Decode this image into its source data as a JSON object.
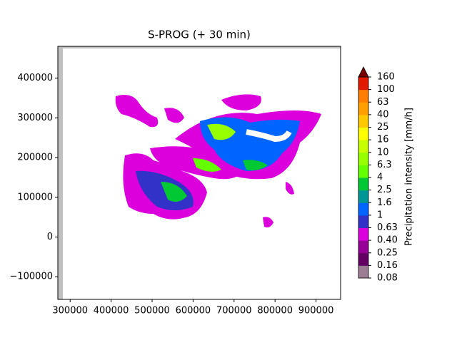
{
  "chart_data": {
    "type": "contourf",
    "title": "S-PROG (+ 30 min)",
    "xlim": [
      270000,
      960000
    ],
    "xticks": [
      300000,
      400000,
      500000,
      600000,
      700000,
      800000,
      900000
    ],
    "ylim": [
      -157000,
      480000
    ],
    "yticks": [
      {
        "value": -100000,
        "label": "−100000"
      },
      0,
      100000,
      200000,
      300000,
      400000
    ],
    "colorbar": {
      "label": "Precipitation intensity [mm/h]",
      "levels": [
        0.08,
        0.16,
        0.25,
        {
          "value": 0.4,
          "label": "0.40"
        },
        0.63,
        1,
        1.6,
        2.5,
        4,
        6.3,
        10,
        16,
        25,
        40,
        63,
        100,
        160
      ],
      "colors": [
        "#9c7e94",
        "#640064",
        "#960096",
        "#dc00dc",
        "#3232c8",
        "#0064ff",
        "#009696",
        "#00c832",
        "#64ff00",
        "#96ff00",
        "#c8ff00",
        "#ffff00",
        "#ffc800",
        "#ffa000",
        "#ff7d00",
        "#e11900"
      ],
      "extend_color": "#7a0000"
    }
  }
}
